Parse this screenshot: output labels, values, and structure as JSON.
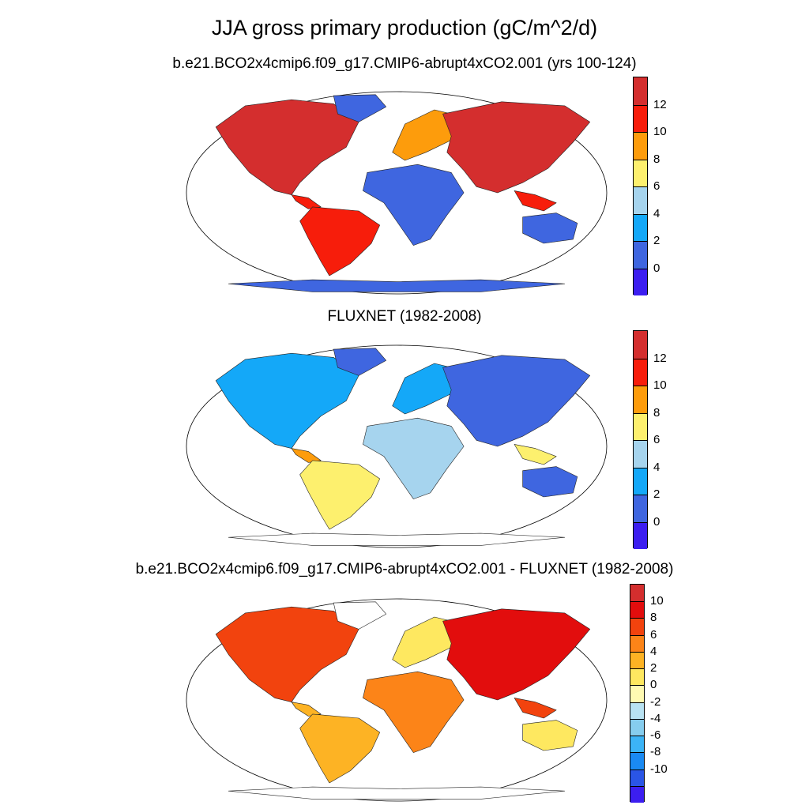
{
  "figure": {
    "title": "JJA gross primary production (gC/m^2/d)"
  },
  "panels": [
    {
      "id": "model",
      "subtitle": "b.e21.BCO2x4cmip6.f09_g17.CMIP6-abrupt4xCO2.001 (yrs 100-124)",
      "colorbar": {
        "colors": [
          "#3c1ef0",
          "#3f66e0",
          "#14a8f8",
          "#a6d4ee",
          "#fdf06e",
          "#fd9c0c",
          "#f71d0b",
          "#d42e2e"
        ],
        "tick_labels": [
          "0",
          "2",
          "4",
          "6",
          "8",
          "10",
          "12"
        ]
      },
      "dominant_palette": [
        "#3f66e0",
        "#d42e2e",
        "#f71d0b",
        "#fd9c0c",
        "#fdf06e",
        "#14a8f8"
      ]
    },
    {
      "id": "obs",
      "subtitle": "FLUXNET (1982-2008)",
      "colorbar": {
        "colors": [
          "#3c1ef0",
          "#3f66e0",
          "#14a8f8",
          "#a6d4ee",
          "#fdf06e",
          "#fd9c0c",
          "#f71d0b",
          "#d42e2e"
        ],
        "tick_labels": [
          "0",
          "2",
          "4",
          "6",
          "8",
          "10",
          "12"
        ]
      },
      "dominant_palette": [
        "#3f66e0",
        "#14a8f8",
        "#a6d4ee",
        "#fdf06e",
        "#fd9c0c"
      ]
    },
    {
      "id": "diff",
      "subtitle": "b.e21.BCO2x4cmip6.f09_g17.CMIP6-abrupt4xCO2.001 - FLUXNET (1982-2008)",
      "colorbar": {
        "colors": [
          "#3c1ef0",
          "#2a55e6",
          "#1a8af2",
          "#3cb4f6",
          "#86cdee",
          "#b8e2f2",
          "#fffab2",
          "#fee860",
          "#fdb324",
          "#fc8418",
          "#f2430e",
          "#e20d0d",
          "#d42e2e"
        ],
        "tick_labels": [
          "10",
          "8",
          "6",
          "4",
          "2",
          "0",
          "-2",
          "-4",
          "-6",
          "-8",
          "-10"
        ]
      },
      "dominant_palette": [
        "#fee860",
        "#fdb324",
        "#fc8418",
        "#f2430e",
        "#b8e2f2",
        "#e20d0d"
      ]
    }
  ]
}
